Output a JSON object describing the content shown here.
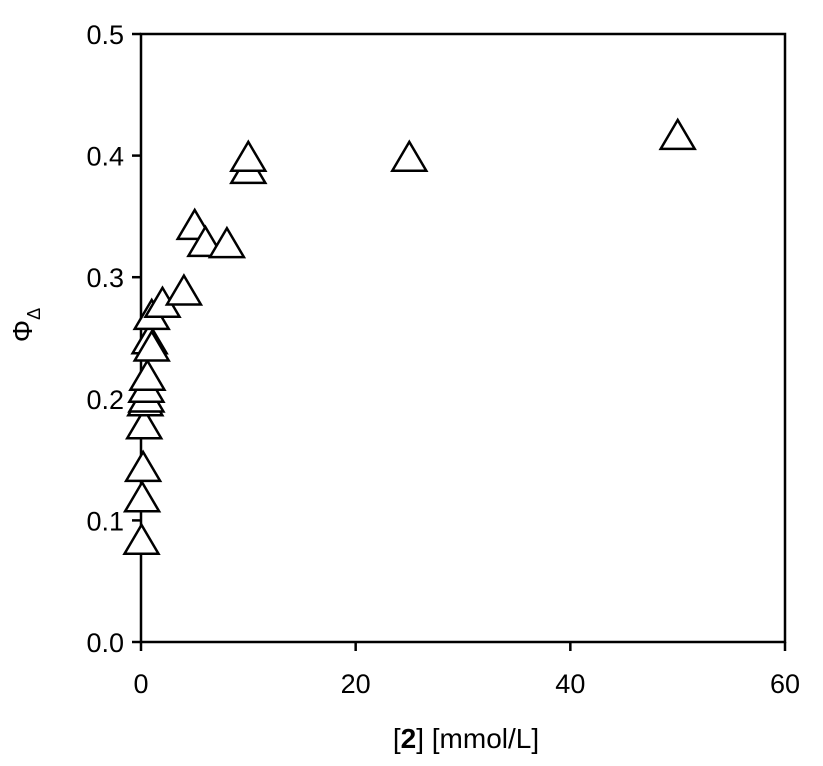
{
  "chart_data": {
    "type": "scatter",
    "title": "",
    "xlabel": {
      "prefix": "[",
      "bold": "2",
      "suffix": "] [mmol/L]"
    },
    "ylabel": {
      "main": "Φ",
      "sub": "Δ"
    },
    "xlim": [
      0,
      60
    ],
    "ylim": [
      0,
      0.5
    ],
    "xticks": [
      "0",
      "20",
      "40",
      "60"
    ],
    "yticks": [
      "0.0",
      "0.1",
      "0.2",
      "0.3",
      "0.4",
      "0.5"
    ],
    "grid": false,
    "legend": "none",
    "marker": "open-triangle",
    "marker_color": "#000000",
    "series": [
      {
        "x": [
          0.05,
          0.1,
          0.2,
          0.3,
          0.4,
          0.5,
          0.5,
          0.6,
          0.8,
          1.0,
          1.0,
          2.0,
          4.0,
          5.0,
          6.0,
          8.0,
          10.0,
          10.0,
          25.0,
          50.0
        ],
        "y": [
          0.083,
          0.118,
          0.143,
          0.178,
          0.197,
          0.2,
          0.208,
          0.218,
          0.248,
          0.242,
          0.268,
          0.278,
          0.288,
          0.342,
          0.328,
          0.327,
          0.388,
          0.398,
          0.398,
          0.416
        ]
      }
    ]
  }
}
